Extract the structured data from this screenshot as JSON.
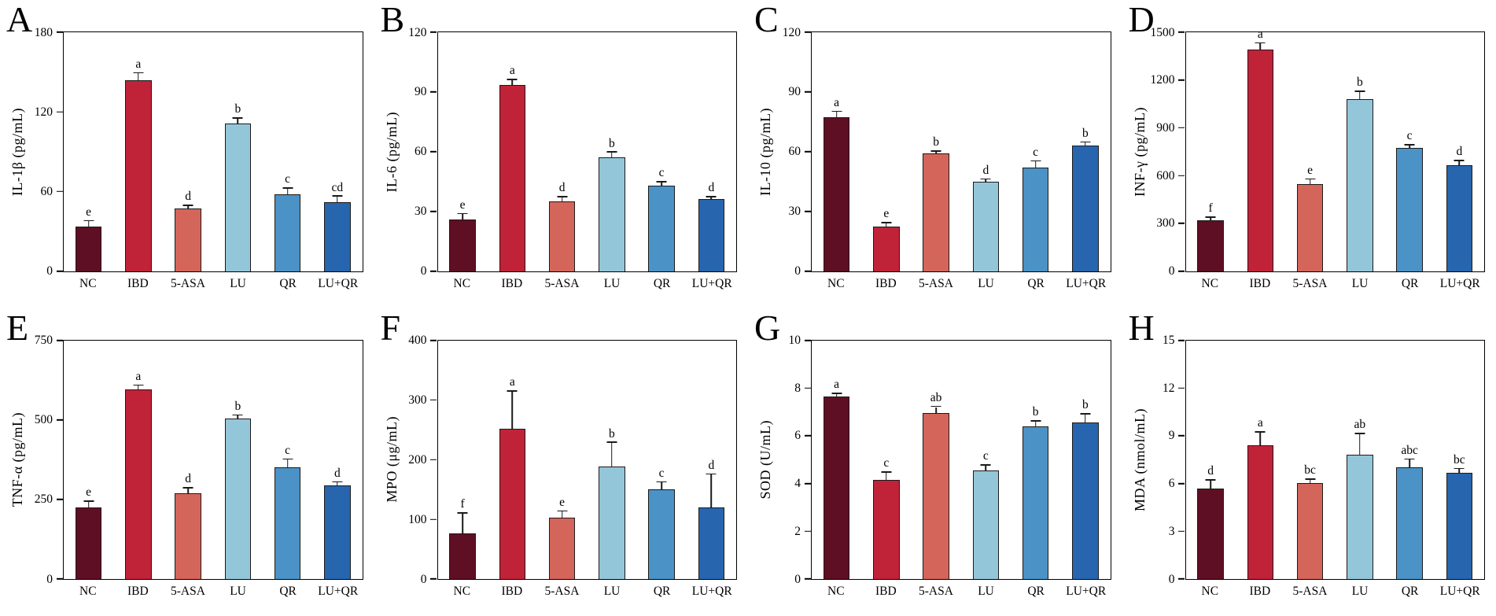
{
  "figure": {
    "groups": [
      "NC",
      "IBD",
      "5-ASA",
      "LU",
      "QR",
      "LU+QR"
    ],
    "bar_colors": [
      "#5f0f23",
      "#c02338",
      "#d4655a",
      "#94c6da",
      "#4b92c6",
      "#2766ae"
    ],
    "bar_border_color": "#1a1a1a",
    "axis_color": "#000000",
    "background_color": "#ffffff"
  },
  "chart_data": [
    {
      "type": "bar",
      "panel": "A",
      "ylabel": "IL-1β (pg/mL)",
      "xlabel": "",
      "ylim": [
        0,
        180
      ],
      "yticks": [
        0,
        60,
        120,
        180
      ],
      "grid": false,
      "legend": "none",
      "categories": [
        "NC",
        "IBD",
        "5-ASA",
        "LU",
        "QR",
        "LU+QR"
      ],
      "values": [
        33.5,
        144,
        47,
        111,
        58,
        52
      ],
      "errors_plus": [
        4,
        5,
        2,
        4,
        4,
        4
      ],
      "sig_letters": [
        "e",
        "a",
        "d",
        "b",
        "c",
        "cd"
      ]
    },
    {
      "type": "bar",
      "panel": "B",
      "ylabel": "IL-6 (pg/mL)",
      "xlabel": "",
      "ylim": [
        0,
        120
      ],
      "yticks": [
        0,
        30,
        60,
        90,
        120
      ],
      "grid": false,
      "legend": "none",
      "categories": [
        "NC",
        "IBD",
        "5-ASA",
        "LU",
        "QR",
        "LU+QR"
      ],
      "values": [
        26,
        93.5,
        35,
        57,
        43,
        36
      ],
      "errors_plus": [
        2.5,
        2.5,
        2,
        2.5,
        1.5,
        1
      ],
      "sig_letters": [
        "e",
        "a",
        "d",
        "b",
        "c",
        "d"
      ]
    },
    {
      "type": "bar",
      "panel": "C",
      "ylabel": "IL-10 (pg/mL)",
      "xlabel": "",
      "ylim": [
        0,
        120
      ],
      "yticks": [
        0,
        30,
        60,
        90,
        120
      ],
      "grid": false,
      "legend": "none",
      "categories": [
        "NC",
        "IBD",
        "5-ASA",
        "LU",
        "QR",
        "LU+QR"
      ],
      "values": [
        77.5,
        22.5,
        59,
        45,
        52,
        63
      ],
      "errors_plus": [
        2.5,
        1.5,
        1,
        1,
        3,
        1.5
      ],
      "sig_letters": [
        "a",
        "e",
        "b",
        "d",
        "c",
        "b"
      ]
    },
    {
      "type": "bar",
      "panel": "D",
      "ylabel": "INF-γ (pg/mL)",
      "xlabel": "",
      "ylim": [
        0,
        1500
      ],
      "yticks": [
        0,
        300,
        600,
        900,
        1200,
        1500
      ],
      "grid": false,
      "legend": "none",
      "categories": [
        "NC",
        "IBD",
        "5-ASA",
        "LU",
        "QR",
        "LU+QR"
      ],
      "values": [
        320,
        1390,
        545,
        1080,
        775,
        665
      ],
      "errors_plus": [
        15,
        40,
        30,
        45,
        15,
        25
      ],
      "sig_letters": [
        "f",
        "a",
        "e",
        "b",
        "c",
        "d"
      ]
    },
    {
      "type": "bar",
      "panel": "E",
      "ylabel": "TNF-α (pg/mL)",
      "xlabel": "",
      "ylim": [
        0,
        750
      ],
      "yticks": [
        0,
        250,
        500,
        750
      ],
      "grid": false,
      "legend": "none",
      "categories": [
        "NC",
        "IBD",
        "5-ASA",
        "LU",
        "QR",
        "LU+QR"
      ],
      "values": [
        225,
        595,
        270,
        503,
        350,
        295
      ],
      "errors_plus": [
        18,
        12,
        15,
        10,
        25,
        8
      ],
      "sig_letters": [
        "e",
        "a",
        "d",
        "b",
        "c",
        "d"
      ]
    },
    {
      "type": "bar",
      "panel": "F",
      "ylabel": "MPO (μg/mL)",
      "xlabel": "",
      "ylim": [
        0,
        400
      ],
      "yticks": [
        0,
        100,
        200,
        300,
        400
      ],
      "grid": false,
      "legend": "none",
      "categories": [
        "NC",
        "IBD",
        "5-ASA",
        "LU",
        "QR",
        "LU+QR"
      ],
      "values": [
        77,
        252,
        103,
        188,
        150,
        120
      ],
      "errors_plus": [
        33,
        62,
        10,
        40,
        12,
        55
      ],
      "sig_letters": [
        "f",
        "a",
        "e",
        "b",
        "c",
        "d"
      ]
    },
    {
      "type": "bar",
      "panel": "G",
      "ylabel": "SOD (U/mL)",
      "xlabel": "",
      "ylim": [
        0,
        10
      ],
      "yticks": [
        0,
        2,
        4,
        6,
        8,
        10
      ],
      "grid": false,
      "legend": "none",
      "categories": [
        "NC",
        "IBD",
        "5-ASA",
        "LU",
        "QR",
        "LU+QR"
      ],
      "values": [
        7.65,
        4.15,
        6.95,
        4.55,
        6.4,
        6.55
      ],
      "errors_plus": [
        0.1,
        0.3,
        0.25,
        0.2,
        0.2,
        0.35
      ],
      "sig_letters": [
        "a",
        "c",
        "ab",
        "c",
        "b",
        "b"
      ]
    },
    {
      "type": "bar",
      "panel": "H",
      "ylabel": "MDA (nmol/mL)",
      "xlabel": "",
      "ylim": [
        0,
        15
      ],
      "yticks": [
        0,
        3,
        6,
        9,
        12,
        15
      ],
      "grid": false,
      "legend": "none",
      "categories": [
        "NC",
        "IBD",
        "5-ASA",
        "LU",
        "QR",
        "LU+QR"
      ],
      "values": [
        5.7,
        8.4,
        6.05,
        7.8,
        7.0,
        6.65
      ],
      "errors_plus": [
        0.5,
        0.8,
        0.2,
        1.3,
        0.5,
        0.25
      ],
      "sig_letters": [
        "d",
        "a",
        "bc",
        "ab",
        "abc",
        "bc"
      ]
    }
  ]
}
